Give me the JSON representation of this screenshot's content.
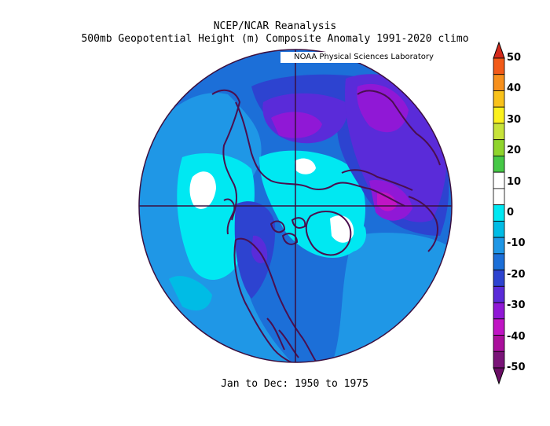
{
  "title_line1": "NCEP/NCAR Reanalysis",
  "title_line2": "500mb Geopotential Height (m) Composite Anomaly 1991-2020 climo",
  "credit": "NOAA Physical Sciences Laboratory",
  "footer": "Jan to Dec: 1950 to 1975",
  "colorbar": {
    "ticks": [
      "50",
      "40",
      "30",
      "20",
      "10",
      "0",
      "-10",
      "-20",
      "-30",
      "-40",
      "-50"
    ],
    "colors": [
      "#d42a1c",
      "#f25a18",
      "#f7901c",
      "#f9c21a",
      "#fbf11d",
      "#c7e33a",
      "#8fd42c",
      "#46c846",
      "#ffffff",
      "#ffffff",
      "#00e8f2",
      "#00bce5",
      "#1f97e6",
      "#1c6fd8",
      "#2d43d0",
      "#5a2bd9",
      "#9018d6",
      "#c015c4",
      "#aa0f9c",
      "#7a1478",
      "#6a0d65"
    ]
  },
  "map": {
    "projection": "north-polar-stereographic",
    "field": "500mb geopotential height anomaly"
  }
}
